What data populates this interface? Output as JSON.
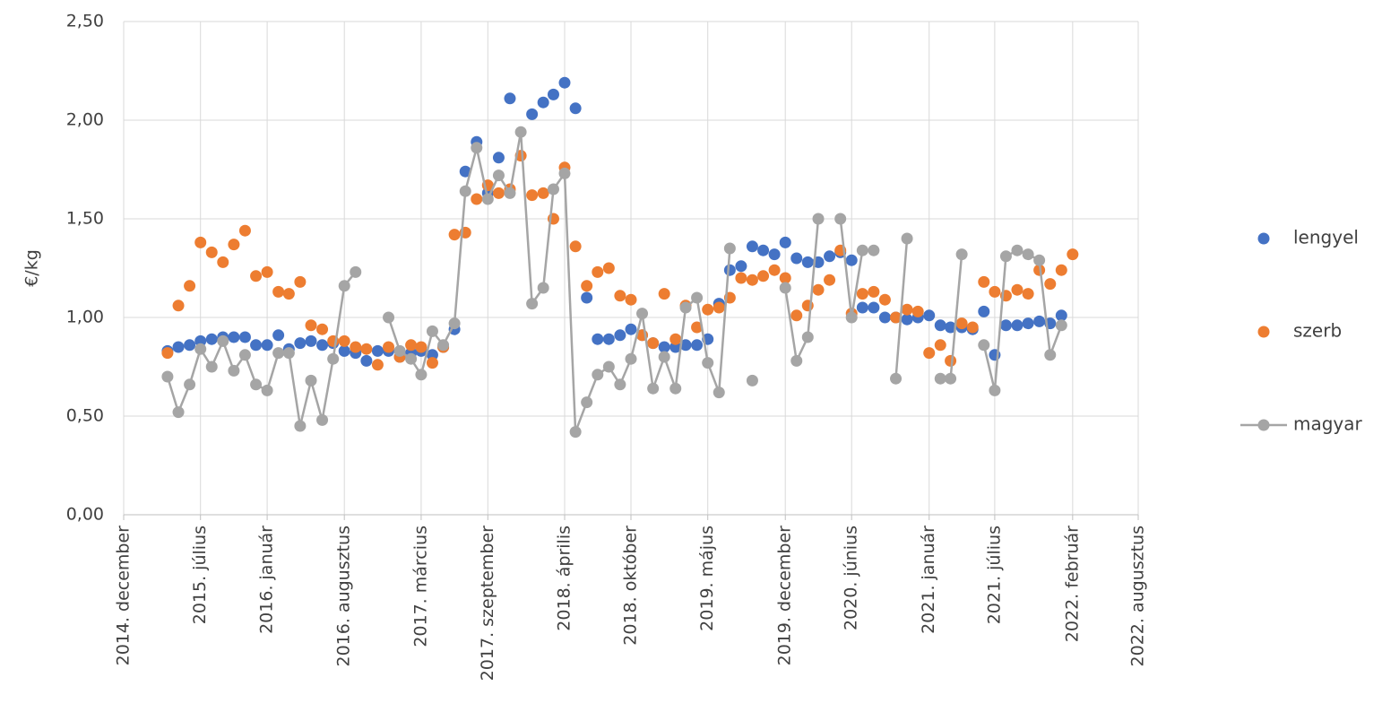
{
  "chart_data": {
    "type": "scatter",
    "ylabel": "€/kg",
    "x": [
      "2015-04",
      "2015-05",
      "2015-06",
      "2015-07",
      "2015-08",
      "2015-09",
      "2015-10",
      "2015-11",
      "2015-12",
      "2016-01",
      "2016-02",
      "2016-03",
      "2016-04",
      "2016-05",
      "2016-06",
      "2016-07",
      "2016-08",
      "2016-09",
      "2016-10",
      "2016-11",
      "2016-12",
      "2017-01",
      "2017-02",
      "2017-03",
      "2017-04",
      "2017-05",
      "2017-06",
      "2017-07",
      "2017-08",
      "2017-09",
      "2017-10",
      "2017-11",
      "2017-12",
      "2018-01",
      "2018-02",
      "2018-03",
      "2018-04",
      "2018-05",
      "2018-06",
      "2018-07",
      "2018-08",
      "2018-09",
      "2018-10",
      "2018-11",
      "2018-12",
      "2019-01",
      "2019-02",
      "2019-03",
      "2019-04",
      "2019-05",
      "2019-06",
      "2019-07",
      "2019-08",
      "2019-09",
      "2019-10",
      "2019-11",
      "2019-12",
      "2020-01",
      "2020-02",
      "2020-03",
      "2020-04",
      "2020-05",
      "2020-06",
      "2020-07",
      "2020-08",
      "2020-09",
      "2020-10",
      "2020-11",
      "2020-12",
      "2021-01",
      "2021-02",
      "2021-03",
      "2021-04",
      "2021-05",
      "2021-06",
      "2021-07",
      "2021-08",
      "2021-09",
      "2021-10",
      "2021-11",
      "2021-12",
      "2022-01",
      "2022-02"
    ],
    "series": [
      {
        "name": "lengyel",
        "color": "#4472c4",
        "line": false,
        "values": [
          0.83,
          0.85,
          0.86,
          0.88,
          0.89,
          0.9,
          0.9,
          0.9,
          0.86,
          0.86,
          0.91,
          0.84,
          0.87,
          0.88,
          0.86,
          0.87,
          0.83,
          0.82,
          0.78,
          0.83,
          0.83,
          0.8,
          0.82,
          0.83,
          0.81,
          0.85,
          0.94,
          1.74,
          1.89,
          1.63,
          1.81,
          2.11,
          null,
          2.03,
          2.09,
          2.13,
          2.19,
          2.06,
          1.1,
          0.89,
          0.89,
          0.91,
          0.94,
          0.91,
          0.87,
          0.85,
          0.85,
          0.86,
          0.86,
          0.89,
          1.07,
          1.24,
          1.26,
          1.36,
          1.34,
          1.32,
          1.38,
          1.3,
          1.28,
          1.28,
          1.31,
          1.33,
          1.29,
          1.05,
          1.05,
          1.0,
          1.0,
          0.99,
          1.0,
          1.01,
          0.96,
          0.95,
          0.95,
          0.94,
          1.03,
          0.81,
          0.96,
          0.96,
          0.97,
          0.98,
          0.97,
          1.01,
          null
        ]
      },
      {
        "name": "szerb",
        "color": "#ed7d31",
        "line": false,
        "values": [
          0.82,
          1.06,
          1.16,
          1.38,
          1.33,
          1.28,
          1.37,
          1.44,
          1.21,
          1.23,
          1.13,
          1.12,
          1.18,
          0.96,
          0.94,
          0.88,
          0.88,
          0.85,
          0.84,
          0.76,
          0.85,
          0.8,
          0.86,
          0.85,
          0.77,
          0.85,
          1.42,
          1.43,
          1.6,
          1.67,
          1.63,
          1.65,
          1.82,
          1.62,
          1.63,
          1.5,
          1.76,
          1.36,
          1.16,
          1.23,
          1.25,
          1.11,
          1.09,
          0.91,
          0.87,
          1.12,
          0.89,
          1.06,
          0.95,
          1.04,
          1.05,
          1.1,
          1.2,
          1.19,
          1.21,
          1.24,
          1.2,
          1.01,
          1.06,
          1.14,
          1.19,
          1.34,
          1.02,
          1.12,
          1.13,
          1.09,
          1.0,
          1.04,
          1.03,
          0.82,
          0.86,
          0.78,
          0.97,
          0.95,
          1.18,
          1.13,
          1.11,
          1.14,
          1.12,
          1.24,
          1.17,
          1.24,
          1.32
        ]
      },
      {
        "name": "magyar",
        "color": "#a5a5a5",
        "line": true,
        "values": [
          0.7,
          0.52,
          0.66,
          0.84,
          0.75,
          0.88,
          0.73,
          0.81,
          0.66,
          0.63,
          0.82,
          0.82,
          0.45,
          0.68,
          0.48,
          0.79,
          1.16,
          1.23,
          null,
          null,
          1.0,
          0.83,
          0.79,
          0.71,
          0.93,
          0.86,
          0.97,
          1.64,
          1.86,
          1.6,
          1.72,
          1.63,
          1.94,
          1.07,
          1.15,
          1.65,
          1.73,
          0.42,
          0.57,
          0.71,
          0.75,
          0.66,
          0.79,
          1.02,
          0.64,
          0.8,
          0.64,
          1.05,
          1.1,
          0.77,
          0.62,
          1.35,
          null,
          0.68,
          null,
          null,
          1.15,
          0.78,
          0.9,
          1.5,
          null,
          1.5,
          1.0,
          1.34,
          1.34,
          null,
          0.69,
          1.4,
          null,
          null,
          0.69,
          0.69,
          1.32,
          null,
          0.86,
          0.63,
          1.31,
          1.34,
          1.32,
          1.29,
          0.81,
          0.96,
          null
        ]
      }
    ],
    "xlim": [
      "2014-12",
      "2022-08"
    ],
    "xticks": [
      {
        "value": "2014-12",
        "label": "2014. december"
      },
      {
        "value": "2015-07",
        "label": "2015. július"
      },
      {
        "value": "2016-01",
        "label": "2016. január"
      },
      {
        "value": "2016-08",
        "label": "2016. augusztus"
      },
      {
        "value": "2017-03",
        "label": "2017. március"
      },
      {
        "value": "2017-09",
        "label": "2017. szeptember"
      },
      {
        "value": "2018-04",
        "label": "2018. április"
      },
      {
        "value": "2018-10",
        "label": "2018. október"
      },
      {
        "value": "2019-05",
        "label": "2019. május"
      },
      {
        "value": "2019-12",
        "label": "2019. december"
      },
      {
        "value": "2020-06",
        "label": "2020. június"
      },
      {
        "value": "2021-01",
        "label": "2021. január"
      },
      {
        "value": "2021-07",
        "label": "2021. július"
      },
      {
        "value": "2022-02",
        "label": "2022. február"
      },
      {
        "value": "2022-08",
        "label": "2022. augusztus"
      }
    ],
    "ylim": [
      0,
      2.5
    ],
    "yticks": [
      {
        "value": 0,
        "label": "0,00"
      },
      {
        "value": 0.5,
        "label": "0,50"
      },
      {
        "value": 1,
        "label": "1,00"
      },
      {
        "value": 1.5,
        "label": "1,50"
      },
      {
        "value": 2,
        "label": "2,00"
      },
      {
        "value": 2.5,
        "label": "2,50"
      }
    ],
    "grid": true,
    "legend": "right"
  }
}
